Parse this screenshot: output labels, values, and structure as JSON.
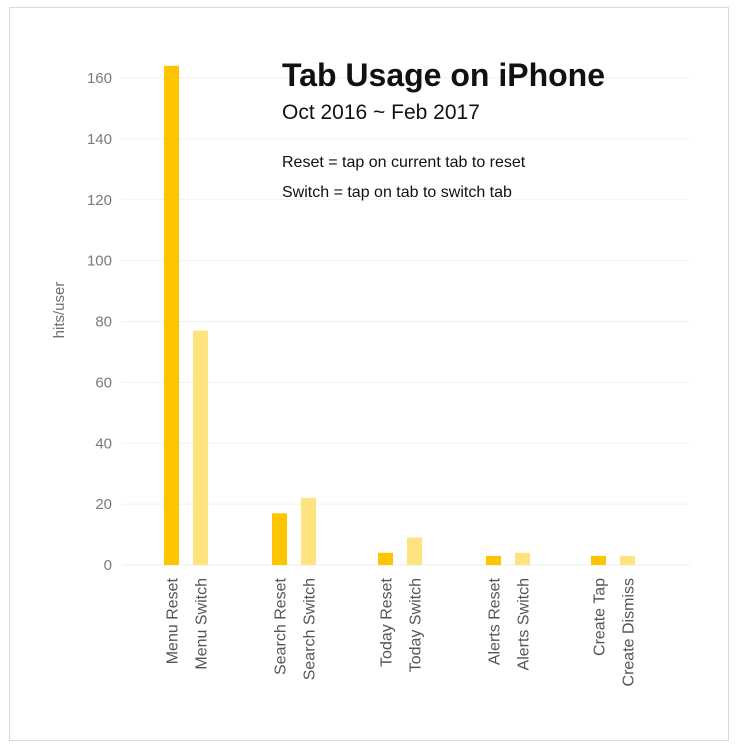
{
  "chart_data": {
    "type": "bar",
    "title": "Tab Usage on iPhone",
    "subtitle": "Oct 2016 ~ Feb 2017",
    "annotations": [
      "Reset = tap on current tab to reset",
      "Switch = tap on tab to switch tab"
    ],
    "xlabel": "",
    "ylabel": "hits/user",
    "ylim": [
      0,
      170
    ],
    "yticks": [
      0,
      20,
      40,
      60,
      80,
      100,
      120,
      140,
      160
    ],
    "grid": true,
    "categories": [
      "Menu Reset",
      "Menu Switch",
      "Search Reset",
      "Search Switch",
      "Today Reset",
      "Today Switch",
      "Alerts Reset",
      "Alerts Switch",
      "Create Tap",
      "Create Dismiss"
    ],
    "values": [
      164,
      77,
      17,
      22,
      4,
      9,
      3,
      4,
      3,
      3
    ],
    "colors": [
      "#fcc500",
      "#fee37f",
      "#fcc500",
      "#fee37f",
      "#fcc500",
      "#fee37f",
      "#fcc500",
      "#fee37f",
      "#fcc500",
      "#fee37f"
    ]
  }
}
